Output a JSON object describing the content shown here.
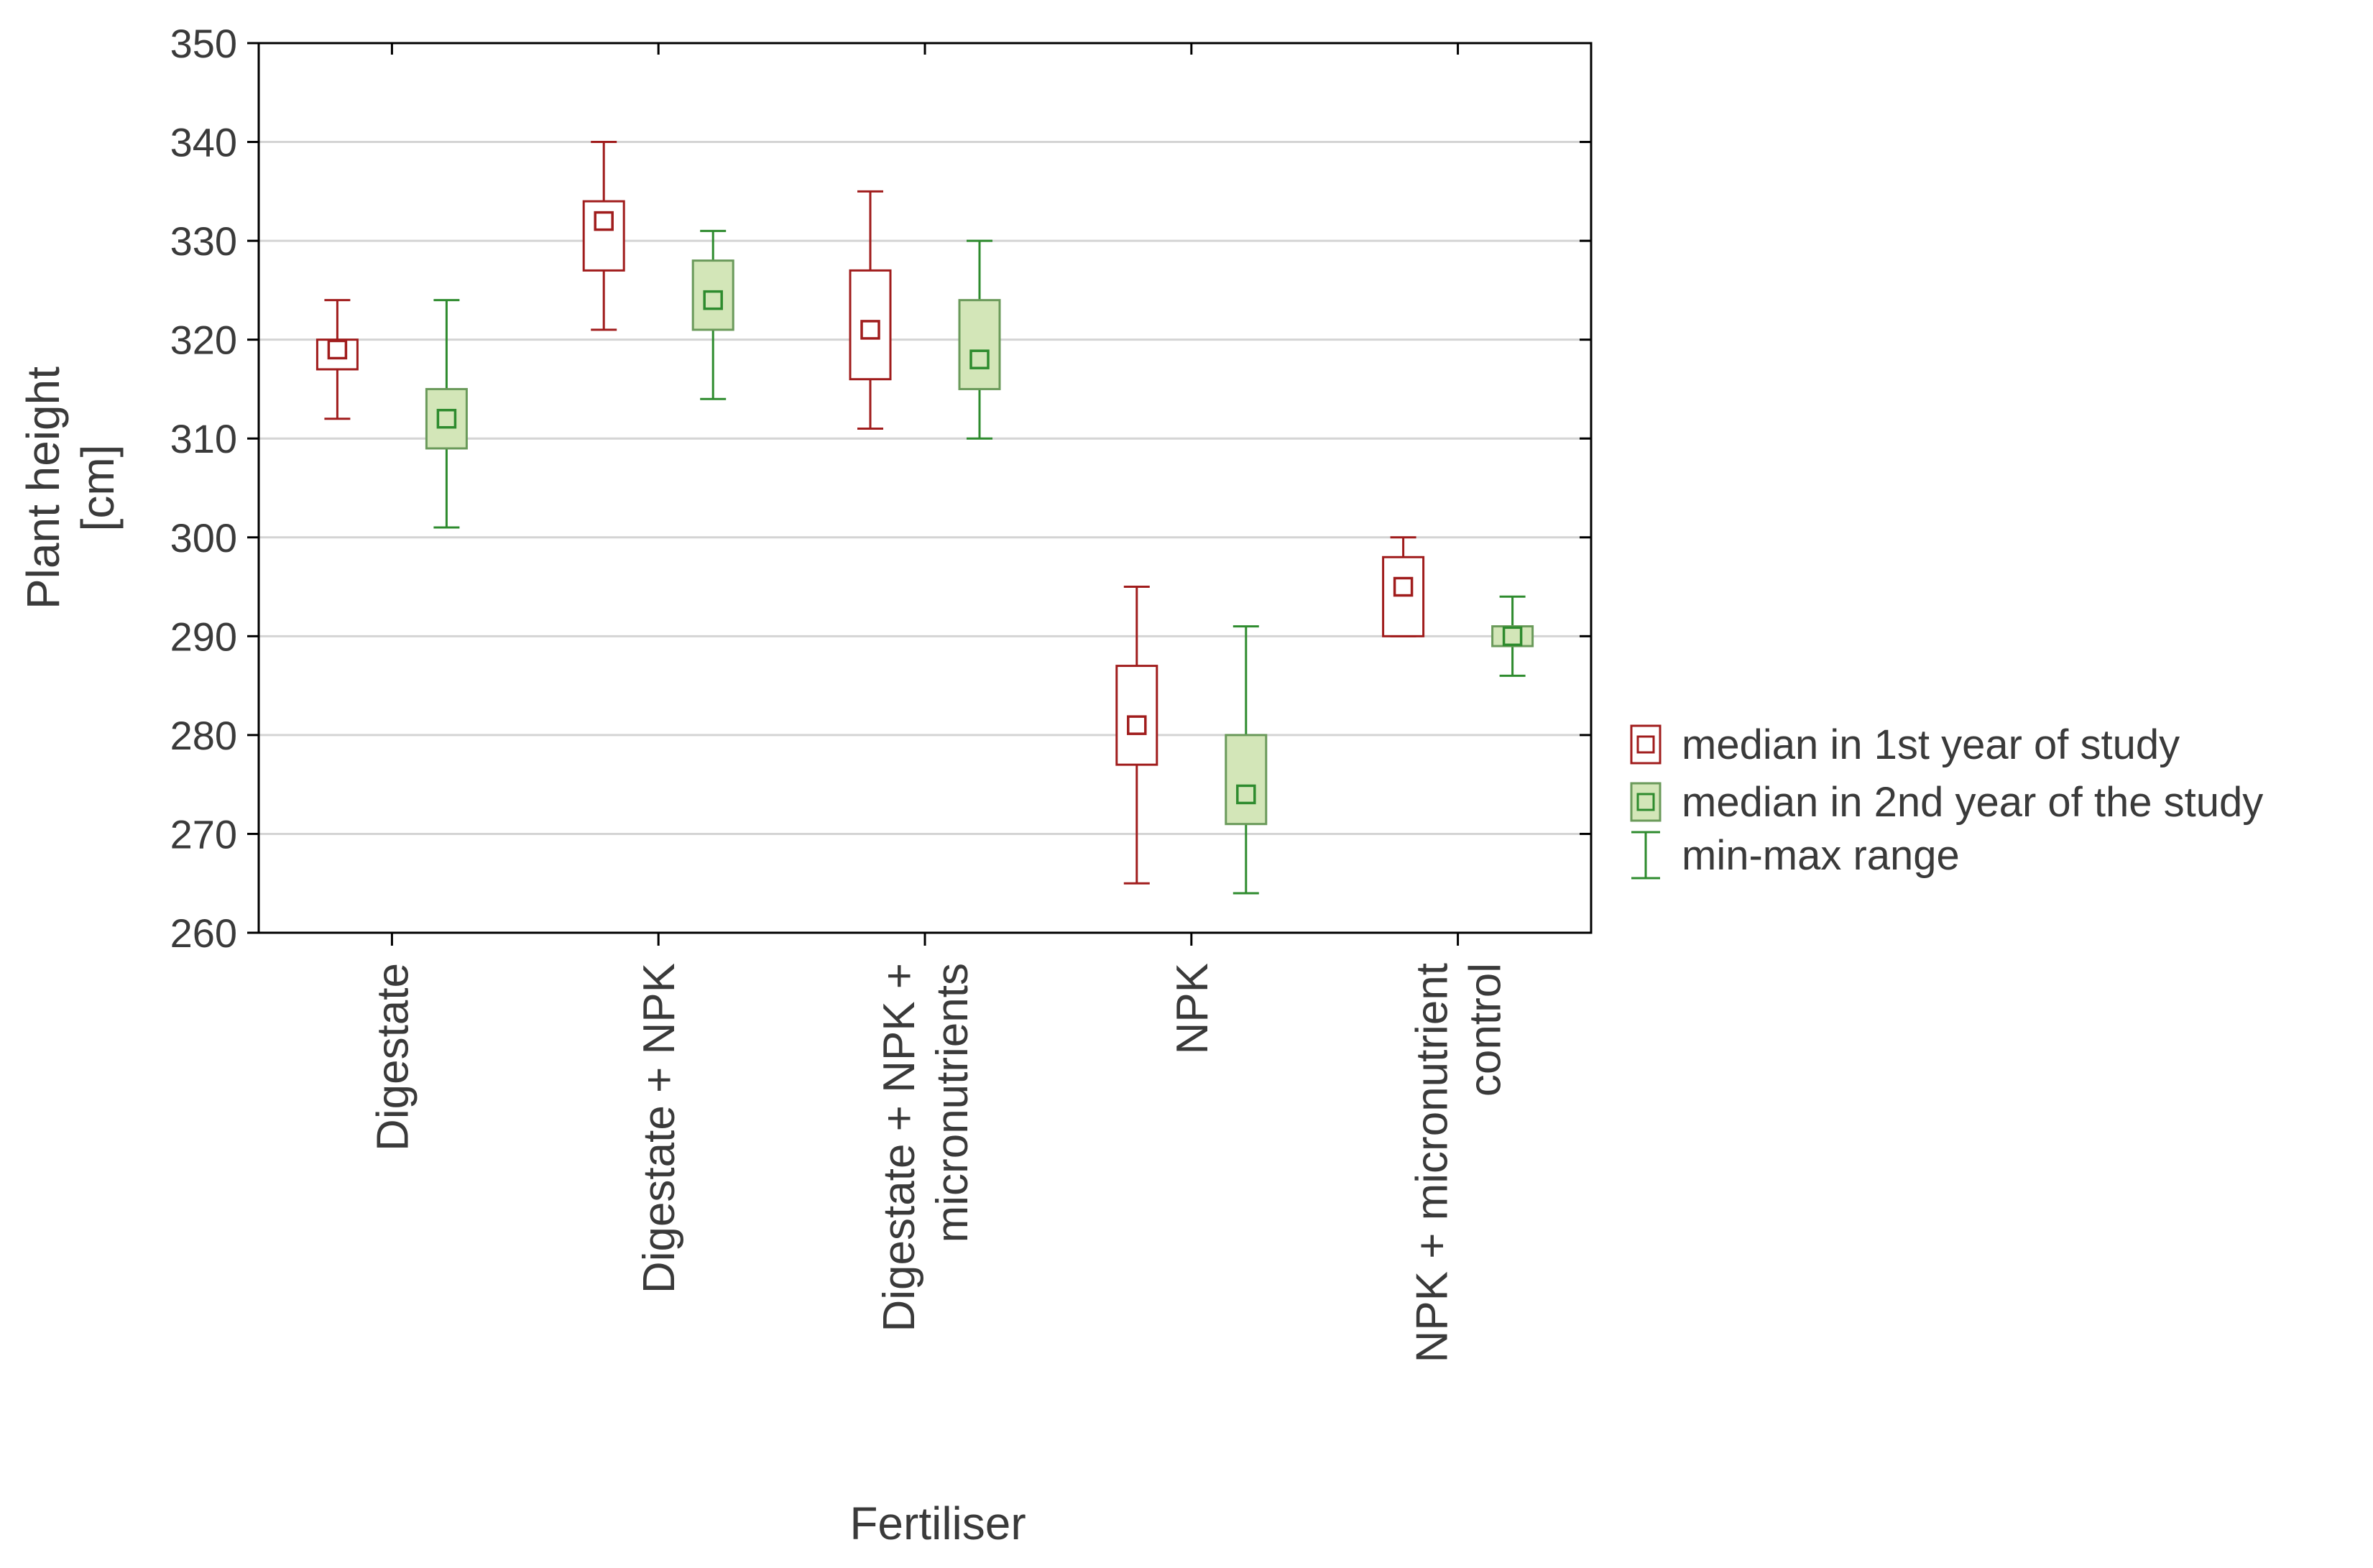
{
  "chart_data": {
    "type": "box",
    "title": "",
    "xlabel": "Fertiliser",
    "ylabel_lines": [
      "Plant height",
      "[cm]"
    ],
    "ylim": [
      260,
      350
    ],
    "yticks": [
      260,
      270,
      280,
      290,
      300,
      310,
      320,
      330,
      340,
      350
    ],
    "grid": true,
    "legend_position": "right",
    "categories": [
      {
        "lines": [
          "Digestate"
        ]
      },
      {
        "lines": [
          "Digestate + NPK"
        ]
      },
      {
        "lines": [
          "Digestate + NPK +",
          "micronutrients"
        ]
      },
      {
        "lines": [
          "NPK"
        ]
      },
      {
        "lines": [
          "NPK + micronutrient",
          "control"
        ]
      }
    ],
    "series": [
      {
        "name": "median in 1st year of study",
        "color": "#a01c1c",
        "fill": "#ffffff",
        "whisker_color": "#a01c1c",
        "boxes": [
          {
            "min": 312,
            "q1": 317,
            "median": 319,
            "q3": 320,
            "max": 324
          },
          {
            "min": 321,
            "q1": 327,
            "median": 332,
            "q3": 334,
            "max": 340
          },
          {
            "min": 311,
            "q1": 316,
            "median": 321,
            "q3": 327,
            "max": 335
          },
          {
            "min": 265,
            "q1": 277,
            "median": 281,
            "q3": 287,
            "max": 295
          },
          {
            "min": 290,
            "q1": 290,
            "median": 295,
            "q3": 298,
            "max": 300
          }
        ]
      },
      {
        "name": "median in 2nd year of the study",
        "color": "#2e8b2e",
        "fill": "#d3e6b8",
        "box_stroke": "#6a9a5a",
        "whisker_color": "#2e8b2e",
        "boxes": [
          {
            "min": 301,
            "q1": 309,
            "median": 312,
            "q3": 315,
            "max": 324
          },
          {
            "min": 314,
            "q1": 321,
            "median": 324,
            "q3": 328,
            "max": 331
          },
          {
            "min": 310,
            "q1": 315,
            "median": 318,
            "q3": 324,
            "max": 330
          },
          {
            "min": 264,
            "q1": 271,
            "median": 274,
            "q3": 280,
            "max": 291
          },
          {
            "min": 286,
            "q1": 289,
            "median": 290,
            "q3": 291,
            "max": 294
          }
        ]
      }
    ],
    "legend": [
      {
        "label": "median in 1st year of study",
        "symbol": "box-red"
      },
      {
        "label": "median in 2nd year of the study",
        "symbol": "box-green"
      },
      {
        "label": "min-max range",
        "symbol": "whisker-green"
      }
    ]
  }
}
